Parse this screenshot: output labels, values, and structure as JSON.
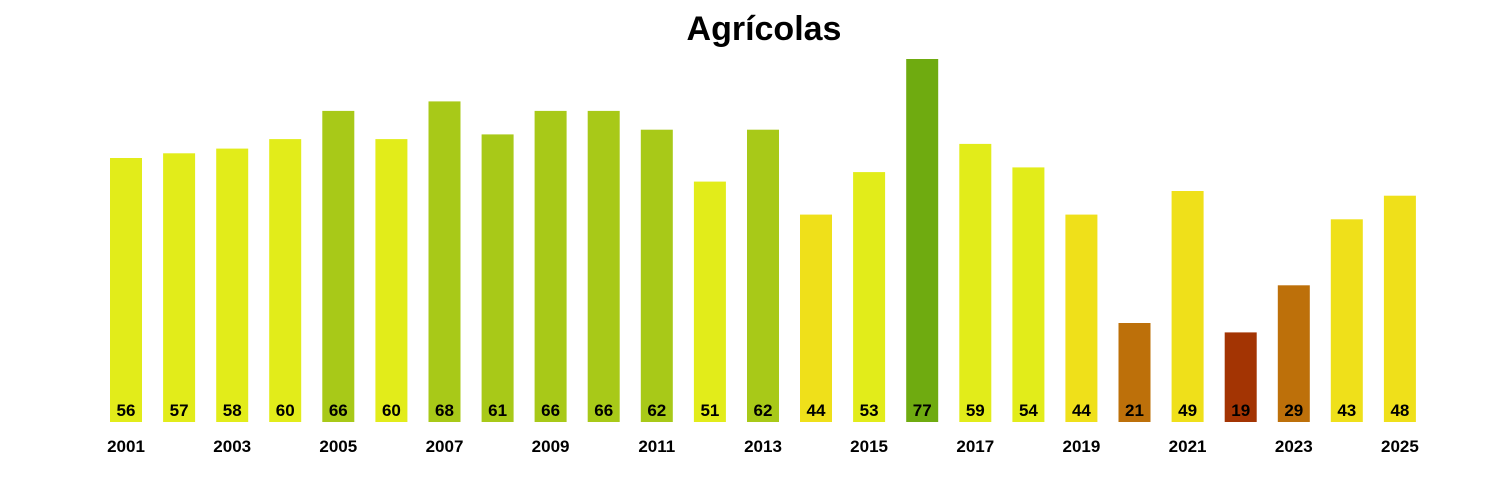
{
  "chart_data": {
    "type": "bar",
    "title": "Agrícolas",
    "xlabel": "",
    "ylabel": "",
    "ylim": [
      0,
      77
    ],
    "grid": false,
    "categories": [
      "2001",
      "2002",
      "2003",
      "2004",
      "2005",
      "2006",
      "2007",
      "2008",
      "2009",
      "2010",
      "2011",
      "2012",
      "2013",
      "2014",
      "2015",
      "2016",
      "2017",
      "2018",
      "2019",
      "2020",
      "2021",
      "2022",
      "2023",
      "2024",
      "2025"
    ],
    "values": [
      56,
      57,
      58,
      60,
      66,
      60,
      68,
      61,
      66,
      66,
      62,
      51,
      62,
      44,
      53,
      77,
      59,
      54,
      44,
      21,
      49,
      19,
      29,
      43,
      48
    ],
    "tick_labels": [
      "2001",
      "2003",
      "2005",
      "2007",
      "2009",
      "2011",
      "2013",
      "2015",
      "2017",
      "2019",
      "2021",
      "2023",
      "2025"
    ],
    "colors": [
      "#e2ec1a",
      "#e2ec1a",
      "#e2ec1a",
      "#e2ec1a",
      "#a8c918",
      "#e2ec1a",
      "#a8c918",
      "#a8c918",
      "#a8c918",
      "#a8c918",
      "#a8c918",
      "#e2ec1a",
      "#a8c918",
      "#efe01a",
      "#e2ec1a",
      "#6fab10",
      "#e2ec1a",
      "#e2ec1a",
      "#efe01a",
      "#bd700a",
      "#efe01a",
      "#a33403",
      "#bd700a",
      "#efe01a",
      "#efe01a"
    ]
  }
}
